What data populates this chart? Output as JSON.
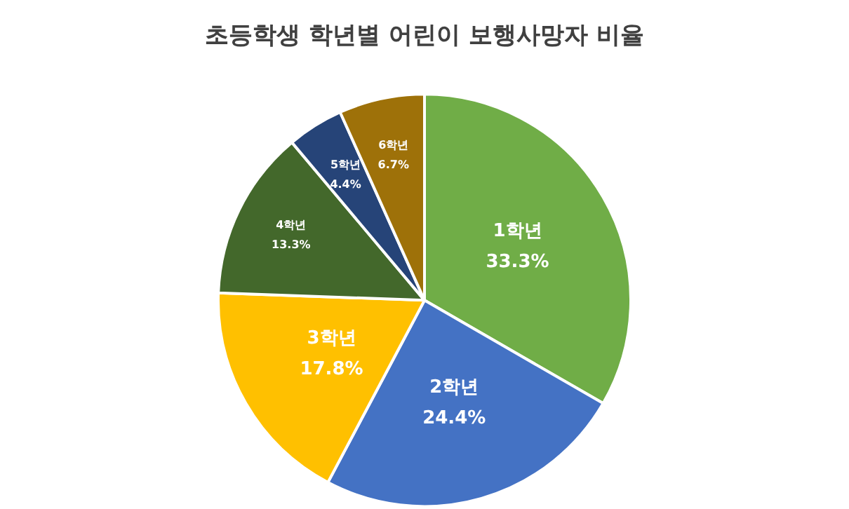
{
  "chart_data": {
    "type": "pie",
    "title": "초등학생 학년별 어린이 보행사망자 비율",
    "categories": [
      "1학년",
      "2학년",
      "3학년",
      "4학년",
      "5학년",
      "6학년"
    ],
    "values": [
      33.3,
      24.4,
      17.8,
      13.3,
      4.4,
      6.7
    ],
    "value_labels": [
      "33.3%",
      "24.4%",
      "17.8%",
      "13.3%",
      "4.4%",
      "6.7%"
    ],
    "colors": [
      "#70ad47",
      "#4472c4",
      "#ffc000",
      "#43682b",
      "#264478",
      "#9e7109"
    ],
    "legend": false
  }
}
